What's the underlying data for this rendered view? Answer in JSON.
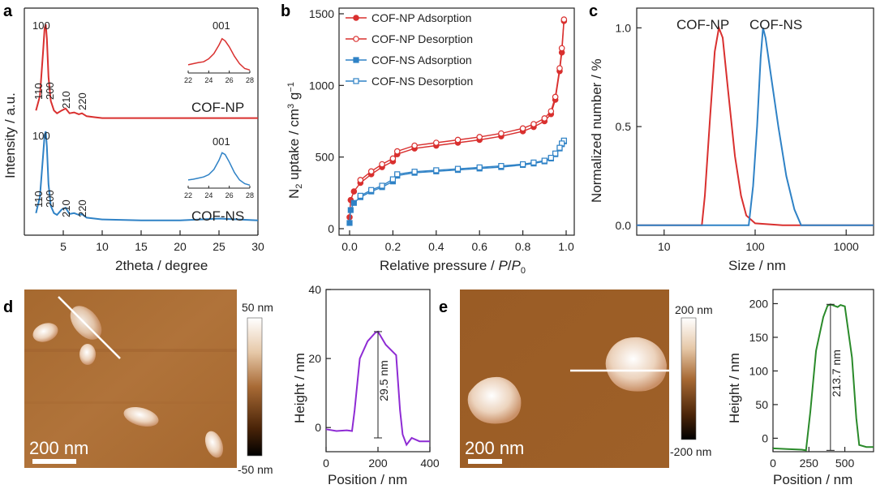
{
  "colors": {
    "np": "#d9302f",
    "ns": "#2f82c6",
    "purple": "#8e2bd4",
    "green": "#2a8a2a",
    "afm_mid": "#a86a35"
  },
  "chart_data": [
    {
      "panel": "a",
      "type": "line",
      "xlabel": "2theta / degree",
      "ylabel": "Intensity / a.u.",
      "xlim": [
        0,
        30
      ],
      "xticks": [
        "5",
        "10",
        "15",
        "20",
        "25",
        "30"
      ],
      "series": [
        {
          "name": "COF-NP",
          "color": "#d9302f",
          "x": [
            1.5,
            2.0,
            2.4,
            2.6,
            2.75,
            2.9,
            3.1,
            3.4,
            3.8,
            4.2,
            4.8,
            5.3,
            5.8,
            6.4,
            7.0,
            7.4,
            8.0,
            9.0,
            10,
            15,
            20,
            25,
            30
          ],
          "y": [
            0.1,
            0.25,
            0.7,
            0.96,
            1.0,
            0.85,
            0.45,
            0.2,
            0.1,
            0.07,
            0.1,
            0.12,
            0.07,
            0.08,
            0.06,
            0.07,
            0.04,
            0.03,
            0.02,
            0.02,
            0.02,
            0.02,
            0.02
          ],
          "peaks": [
            "100",
            "110",
            "200",
            "210",
            "220"
          ]
        },
        {
          "name": "COF-NS",
          "color": "#2f82c6",
          "x": [
            1.5,
            2.0,
            2.4,
            2.6,
            2.75,
            2.9,
            3.1,
            3.4,
            3.8,
            4.2,
            4.8,
            5.3,
            5.8,
            6.4,
            7.0,
            7.4,
            8.0,
            9.0,
            10,
            15,
            20,
            25,
            30
          ],
          "y": [
            0.1,
            0.28,
            0.72,
            0.96,
            1.0,
            0.83,
            0.42,
            0.18,
            0.1,
            0.08,
            0.14,
            0.16,
            0.09,
            0.1,
            0.08,
            0.09,
            0.05,
            0.04,
            0.03,
            0.02,
            0.02,
            0.04,
            0.02
          ],
          "peaks": [
            "100",
            "110",
            "200",
            "210",
            "220"
          ]
        }
      ],
      "insets": [
        {
          "series": "COF-NP",
          "peak": "001",
          "xlim": [
            22,
            28
          ],
          "xticks": [
            "22",
            "24",
            "26",
            "28"
          ],
          "x": [
            22,
            22.5,
            23,
            23.5,
            24,
            24.5,
            25,
            25.3,
            25.6,
            26,
            26.5,
            27,
            27.5,
            28
          ],
          "y": [
            0.22,
            0.25,
            0.28,
            0.3,
            0.38,
            0.52,
            0.75,
            0.92,
            0.86,
            0.7,
            0.45,
            0.25,
            0.12,
            0.08
          ]
        },
        {
          "series": "COF-NS",
          "peak": "001",
          "xlim": [
            22,
            28
          ],
          "xticks": [
            "22",
            "24",
            "26",
            "28"
          ],
          "x": [
            22,
            22.5,
            23,
            23.5,
            24,
            24.5,
            25,
            25.3,
            25.6,
            26,
            26.5,
            27,
            27.5,
            28
          ],
          "y": [
            0.22,
            0.24,
            0.27,
            0.3,
            0.36,
            0.5,
            0.75,
            0.95,
            0.9,
            0.7,
            0.42,
            0.22,
            0.12,
            0.08
          ]
        }
      ]
    },
    {
      "panel": "b",
      "type": "line",
      "xlabel": "Relative pressure / P/P0",
      "ylabel": "N2 uptake / cm3 g−1",
      "xlim": [
        0,
        1.0
      ],
      "ylim": [
        0,
        1500
      ],
      "xticks": [
        "0.0",
        "0.2",
        "0.4",
        "0.6",
        "0.8",
        "1.0"
      ],
      "yticks": [
        "0",
        "500",
        "1000",
        "1500"
      ],
      "legend": "top-left",
      "series": [
        {
          "name": "COF-NP Adsorption",
          "color": "#d9302f",
          "marker": "filled-circle",
          "x": [
            0.0,
            0.005,
            0.02,
            0.05,
            0.1,
            0.15,
            0.2,
            0.22,
            0.3,
            0.4,
            0.5,
            0.6,
            0.7,
            0.8,
            0.85,
            0.9,
            0.93,
            0.95,
            0.97,
            0.98,
            0.99
          ],
          "y": [
            80,
            200,
            260,
            320,
            380,
            430,
            470,
            520,
            560,
            580,
            600,
            620,
            645,
            680,
            710,
            750,
            800,
            900,
            1100,
            1230,
            1450
          ]
        },
        {
          "name": "COF-NP Desorption",
          "color": "#d9302f",
          "marker": "open-circle",
          "x": [
            0.99,
            0.98,
            0.97,
            0.95,
            0.93,
            0.9,
            0.85,
            0.8,
            0.7,
            0.6,
            0.5,
            0.4,
            0.3,
            0.22,
            0.2,
            0.15,
            0.1,
            0.05
          ],
          "y": [
            1460,
            1260,
            1120,
            920,
            820,
            770,
            730,
            700,
            665,
            640,
            620,
            600,
            580,
            540,
            490,
            450,
            400,
            340
          ]
        },
        {
          "name": "COF-NS Adsorption",
          "color": "#2f82c6",
          "marker": "filled-square",
          "x": [
            0.0,
            0.005,
            0.02,
            0.05,
            0.1,
            0.15,
            0.2,
            0.22,
            0.3,
            0.4,
            0.5,
            0.6,
            0.7,
            0.8,
            0.85,
            0.9,
            0.93,
            0.95,
            0.97,
            0.98,
            0.99
          ],
          "y": [
            40,
            130,
            180,
            220,
            260,
            290,
            330,
            370,
            390,
            400,
            410,
            420,
            430,
            445,
            455,
            470,
            490,
            520,
            560,
            590,
            610
          ]
        },
        {
          "name": "COF-NS Desorption",
          "color": "#2f82c6",
          "marker": "open-square",
          "x": [
            0.99,
            0.98,
            0.97,
            0.95,
            0.93,
            0.9,
            0.85,
            0.8,
            0.7,
            0.6,
            0.5,
            0.4,
            0.3,
            0.22,
            0.2,
            0.15,
            0.1,
            0.05
          ],
          "y": [
            615,
            595,
            565,
            525,
            495,
            475,
            462,
            450,
            438,
            428,
            418,
            408,
            398,
            380,
            345,
            300,
            270,
            230
          ]
        }
      ]
    },
    {
      "panel": "c",
      "type": "line",
      "xlabel": "Size / nm",
      "ylabel": "Normalized number / %",
      "xscale": "log",
      "xlim": [
        5,
        2000
      ],
      "ylim": [
        -0.05,
        1.1
      ],
      "xticks": [
        "10",
        "100",
        "1000"
      ],
      "yticks": [
        "0.0",
        "0.5",
        "1.0"
      ],
      "series": [
        {
          "name": "COF-NP",
          "color": "#d9302f",
          "x": [
            5,
            26,
            28,
            32,
            36,
            40,
            44,
            50,
            60,
            70,
            80,
            100,
            200,
            2000
          ],
          "y": [
            0,
            0,
            0.15,
            0.55,
            0.88,
            1.0,
            0.95,
            0.7,
            0.35,
            0.15,
            0.05,
            0.01,
            0,
            0
          ]
        },
        {
          "name": "COF-NS",
          "color": "#2f82c6",
          "x": [
            5,
            85,
            95,
            105,
            115,
            122,
            130,
            150,
            180,
            220,
            270,
            320,
            2000
          ],
          "y": [
            0,
            0,
            0.2,
            0.5,
            0.85,
            1.0,
            0.95,
            0.75,
            0.5,
            0.25,
            0.08,
            0,
            0
          ]
        }
      ]
    },
    {
      "panel": "d",
      "type": "line",
      "xlabel": "Position / nm",
      "ylabel": "Height / nm",
      "xlim": [
        0,
        400
      ],
      "ylim": [
        -7,
        40
      ],
      "xticks": [
        "0",
        "200",
        "400"
      ],
      "yticks": [
        "0",
        "20",
        "40"
      ],
      "annotation": "29.5 nm",
      "series": [
        {
          "name": "",
          "color": "#8e2bd4",
          "x": [
            0,
            40,
            80,
            100,
            110,
            130,
            160,
            190,
            200,
            230,
            270,
            285,
            295,
            310,
            330,
            360,
            400
          ],
          "y": [
            -0.5,
            -1,
            -0.8,
            -1,
            5,
            20,
            25,
            27.5,
            27.8,
            24,
            21,
            5,
            -2,
            -5,
            -3,
            -4,
            -4
          ]
        }
      ],
      "image": {
        "scalebar": "200 nm",
        "colorscale_max": "50 nm",
        "colorscale_min": "-50 nm"
      }
    },
    {
      "panel": "e",
      "type": "line",
      "xlabel": "Position / nm",
      "ylabel": "Height / nm",
      "xlim": [
        0,
        700
      ],
      "ylim": [
        -20,
        215
      ],
      "xticks": [
        "0",
        "250",
        "500"
      ],
      "yticks": [
        "0",
        "50",
        "100",
        "150",
        "200"
      ],
      "annotation": "213.7 nm",
      "series": [
        {
          "name": "",
          "color": "#2a8a2a",
          "x": [
            0,
            100,
            200,
            230,
            260,
            300,
            350,
            380,
            400,
            450,
            470,
            500,
            550,
            580,
            600,
            650,
            700
          ],
          "y": [
            -15,
            -16,
            -17,
            -18,
            40,
            130,
            180,
            197,
            199,
            195,
            198,
            196,
            120,
            30,
            -10,
            -13,
            -13
          ]
        }
      ],
      "image": {
        "scalebar": "200 nm",
        "colorscale_max": "200 nm",
        "colorscale_min": "-200 nm"
      }
    }
  ],
  "labels": {
    "panel_a": "a",
    "panel_b": "b",
    "panel_c": "c",
    "panel_d": "d",
    "panel_e": "e",
    "a_np": "COF-NP",
    "a_ns": "COF-NS",
    "a_peaks": [
      "100",
      "110",
      "200",
      "210",
      "220"
    ],
    "inset_peak": "001",
    "c_np": "COF-NP",
    "c_ns": "COF-NS"
  }
}
